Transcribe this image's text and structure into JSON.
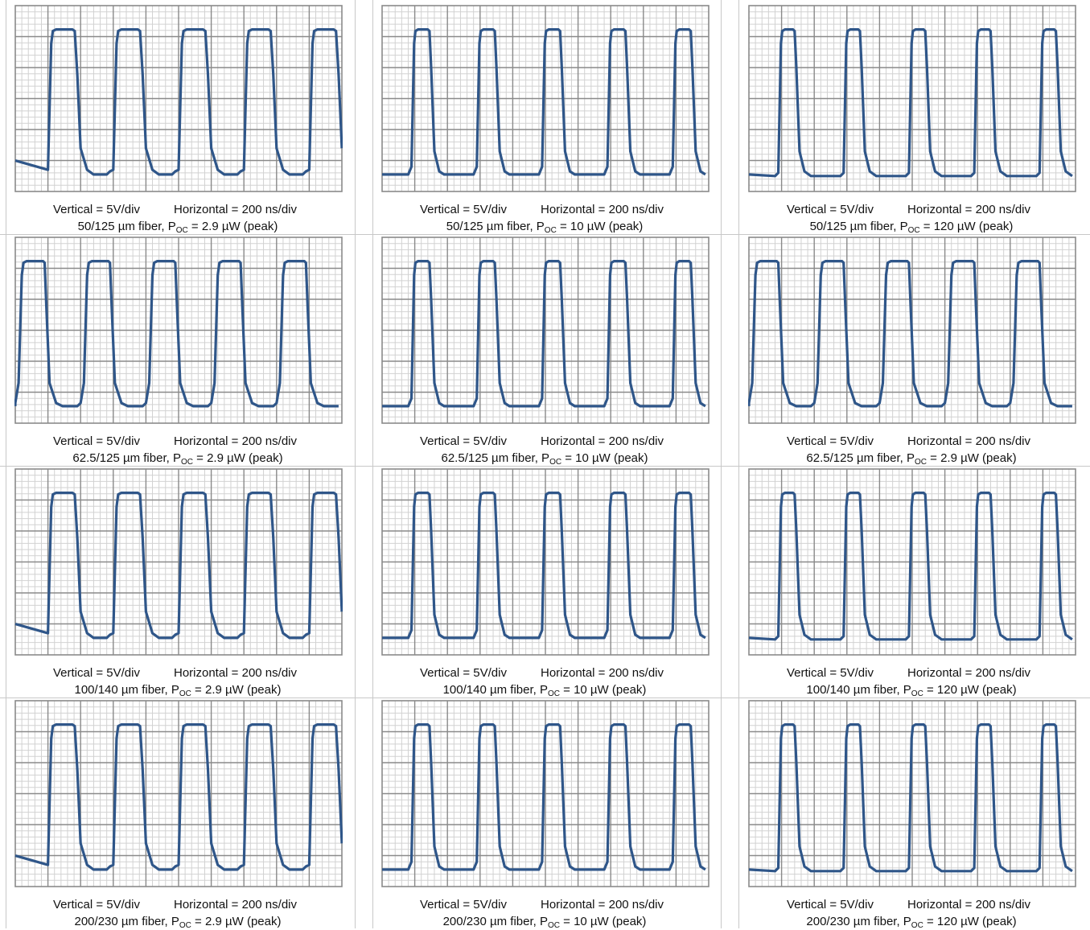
{
  "colors": {
    "trace": "#2f5689",
    "major_grid": "#8a8a8a",
    "minor_grid": "#d2d2d2",
    "frame": "#8a8a8a"
  },
  "chart_data": [
    {
      "type": "line",
      "vertical_label": "Vertical = 5V/div",
      "horizontal_label": "Horizontal = 200 ns/div",
      "fiber": "50/125  µm fiber, P",
      "sub": "OC",
      "power": " = 2.9  µW (peak)",
      "variant": "a"
    },
    {
      "type": "line",
      "vertical_label": "Vertical = 5V/div",
      "horizontal_label": "Horizontal = 200 ns/div",
      "fiber": "50/125  µm fiber, P",
      "sub": "OC",
      "power": " = 10  µW (peak)",
      "variant": "b"
    },
    {
      "type": "line",
      "vertical_label": "Vertical = 5V/div",
      "horizontal_label": "Horizontal = 200 ns/div",
      "fiber": "50/125  µm fiber, P",
      "sub": "OC",
      "power": " = 120  µW (peak)",
      "variant": "c"
    },
    {
      "type": "line",
      "vertical_label": "Vertical = 5V/div",
      "horizontal_label": "Horizontal = 200 ns/div",
      "fiber": "62.5/125  µm fiber, P",
      "sub": "OC",
      "power": " = 2.9 µW (peak)",
      "variant": "d"
    },
    {
      "type": "line",
      "vertical_label": "Vertical = 5V/div",
      "horizontal_label": "Horizontal = 200 ns/div",
      "fiber": "62.5/125  µm fiber, P",
      "sub": "OC",
      "power": " = 10  µW (peak)",
      "variant": "b"
    },
    {
      "type": "line",
      "vertical_label": "Vertical = 5V/div",
      "horizontal_label": "Horizontal = 200 ns/div",
      "fiber": "62.5/125  µm fiber, P",
      "sub": "OC",
      "power": " = 2.9  µW (peak)",
      "variant": "d"
    },
    {
      "type": "line",
      "vertical_label": "Vertical = 5V/div",
      "horizontal_label": "Horizontal = 200 ns/div",
      "fiber": "100/140  µm fiber, P",
      "sub": "OC",
      "power": " = 2.9  µW (peak)",
      "variant": "a"
    },
    {
      "type": "line",
      "vertical_label": "Vertical = 5V/div",
      "horizontal_label": "Horizontal = 200 ns/div",
      "fiber": "100/140  µm fiber, P",
      "sub": "OC",
      "power": " = 10  µW (peak)",
      "variant": "b"
    },
    {
      "type": "line",
      "vertical_label": "Vertical = 5V/div",
      "horizontal_label": "Horizontal = 200 ns/div",
      "fiber": "100/140  µm fiber, P",
      "sub": "OC",
      "power": " = 120  µW (peak)",
      "variant": "c"
    },
    {
      "type": "line",
      "vertical_label": "Vertical = 5V/div",
      "horizontal_label": "Horizontal = 200 ns/div",
      "fiber": "200/230  µm fiber, P",
      "sub": "OC",
      "power": " = 2.9  µW (peak)",
      "variant": "a"
    },
    {
      "type": "line",
      "vertical_label": "Vertical = 5V/div",
      "horizontal_label": "Horizontal = 200 ns/div",
      "fiber": "200/230  µm fiber, P",
      "sub": "OC",
      "power": " = 10  µW (peak)",
      "variant": "b"
    },
    {
      "type": "line",
      "vertical_label": "Vertical = 5V/div",
      "horizontal_label": "Horizontal = 200 ns/div",
      "fiber": "200/230  µm fiber, P",
      "sub": "OC",
      "power": " = 120  µW (peak)",
      "variant": "c"
    }
  ]
}
